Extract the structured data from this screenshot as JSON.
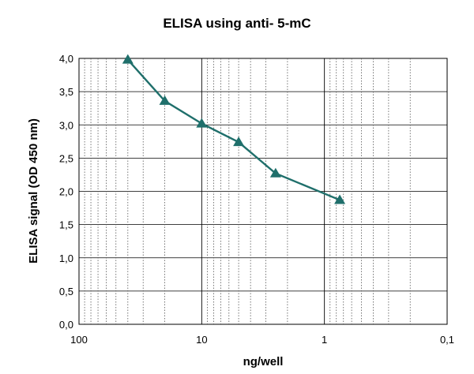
{
  "chart_data": {
    "type": "line",
    "title": "ELISA using anti- 5-mC",
    "xlabel": "ng/well",
    "ylabel": "ELISA signal (OD 450 nm)",
    "x_scale": "log",
    "x_reversed": true,
    "xlim": [
      100,
      0.1
    ],
    "ylim": [
      0,
      4
    ],
    "x_ticks": [
      100,
      10,
      1,
      0.1
    ],
    "x_tick_labels": [
      "100",
      "10",
      "1",
      "0,1"
    ],
    "y_ticks": [
      0,
      0.5,
      1,
      1.5,
      2,
      2.5,
      3,
      3.5,
      4
    ],
    "y_tick_labels": [
      "0,0",
      "0,5",
      "1,0",
      "1,5",
      "2,0",
      "2,5",
      "3,0",
      "3,5",
      "4,0"
    ],
    "grid": "major and minor",
    "series": [
      {
        "marker": "triangle",
        "color": "#1f6f6b",
        "x": [
          40,
          20,
          10,
          5,
          2.5,
          0.75
        ],
        "y": [
          3.98,
          3.36,
          3.02,
          2.74,
          2.27,
          1.87
        ]
      }
    ]
  }
}
